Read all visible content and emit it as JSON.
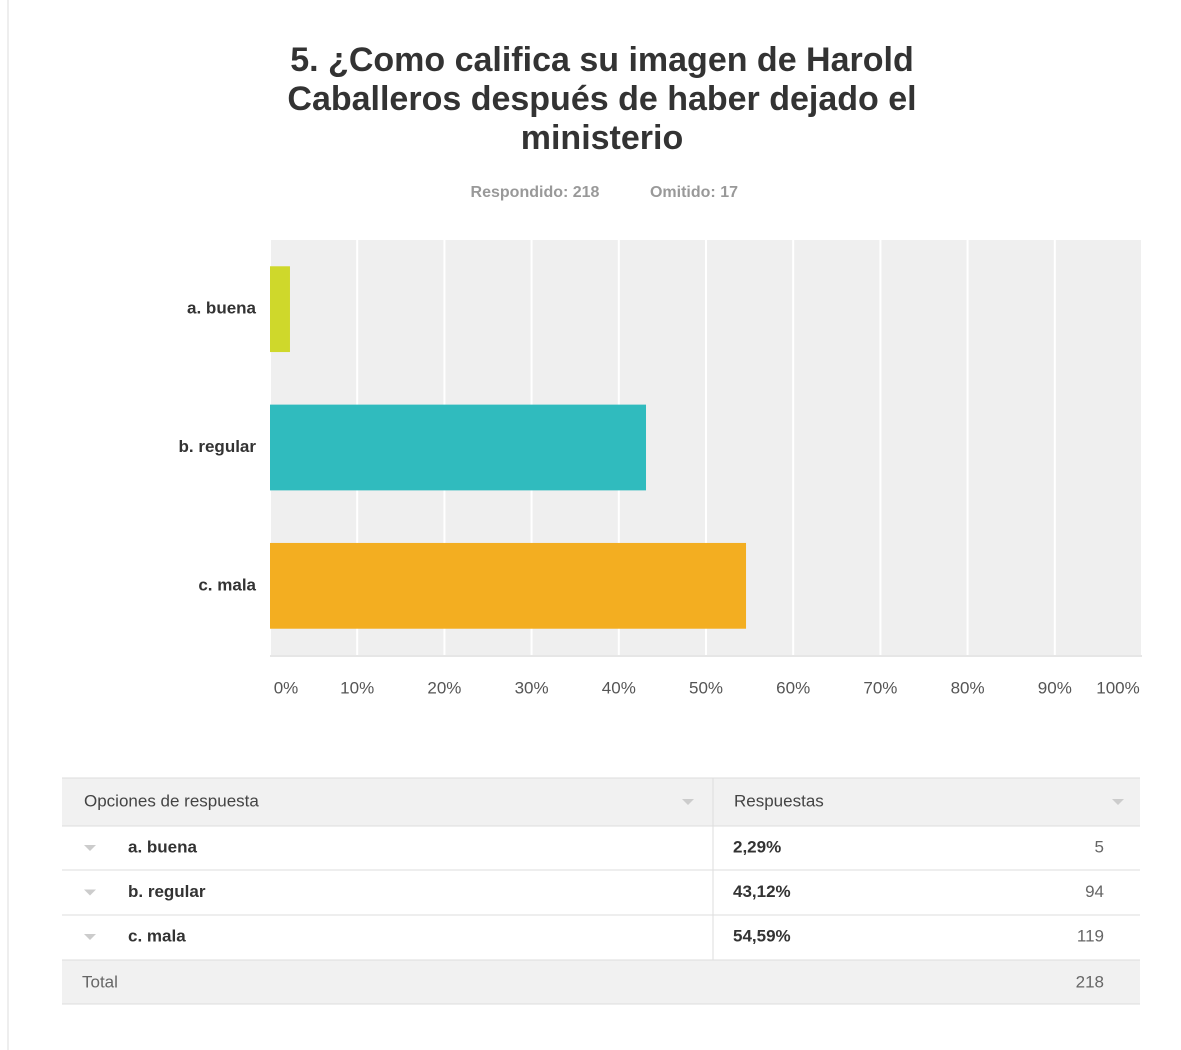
{
  "chart_data": {
    "type": "bar",
    "orientation": "horizontal",
    "title": [
      "5. ¿Como califica su imagen de Harold",
      "Caballeros después de haber dejado el",
      "ministerio"
    ],
    "subtitle": [
      "Respondido: 218",
      "Omitido: 17"
    ],
    "categories": [
      "a. buena",
      "b. regular",
      "c. mala"
    ],
    "values": [
      2.29,
      43.12,
      54.59
    ],
    "colors": [
      "#cfd82b",
      "#30bbbe",
      "#f3ae21"
    ],
    "xlim": [
      0,
      100
    ],
    "xticks": [
      {
        "value": 0,
        "label": "0%"
      },
      {
        "value": 10,
        "label": "10%"
      },
      {
        "value": 20,
        "label": "20%"
      },
      {
        "value": 30,
        "label": "30%"
      },
      {
        "value": 40,
        "label": "40%"
      },
      {
        "value": 50,
        "label": "50%"
      },
      {
        "value": 60,
        "label": "60%"
      },
      {
        "value": 70,
        "label": "70%"
      },
      {
        "value": 80,
        "label": "80%"
      },
      {
        "value": 90,
        "label": "90%"
      },
      {
        "value": 100,
        "label": "100%"
      }
    ],
    "grid": true
  },
  "table": {
    "header": [
      "Opciones de respuesta",
      "Respuestas"
    ],
    "rows": [
      [
        "a. buena",
        "2,29%",
        5
      ],
      [
        "b. regular",
        "43,12%",
        94
      ],
      [
        "c. mala",
        "54,59%",
        119
      ]
    ],
    "total": [
      "Total",
      218
    ]
  }
}
